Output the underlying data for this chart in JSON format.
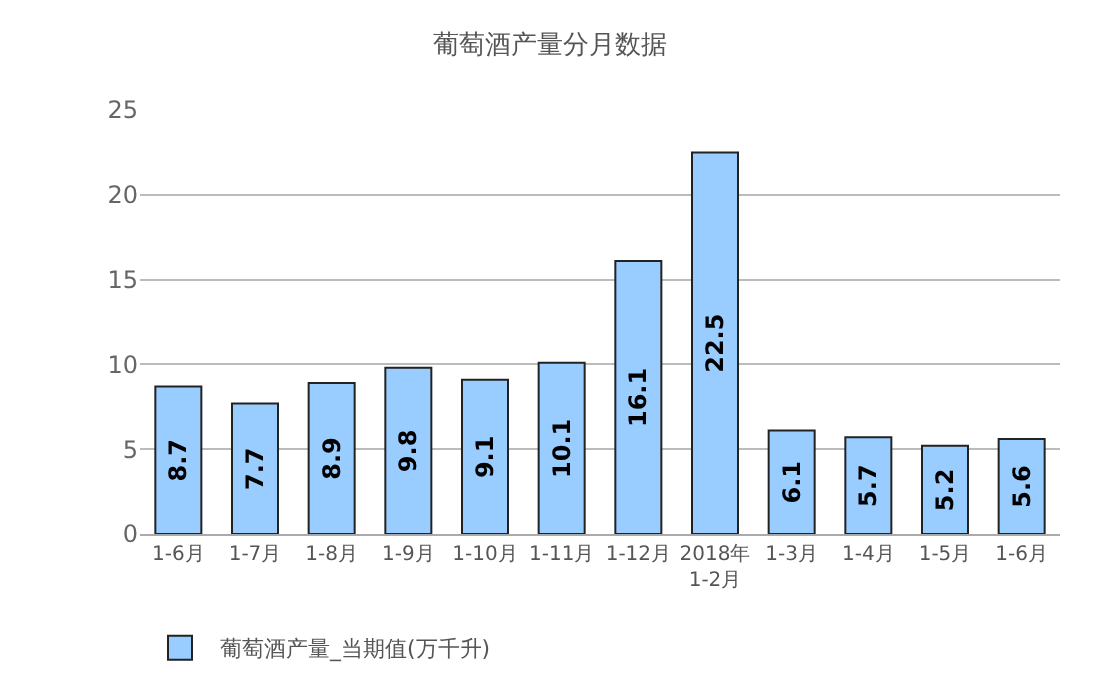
{
  "chart_data": {
    "type": "bar",
    "title": "葡萄酒产量分月数据",
    "categories": [
      "1-6月",
      "1-7月",
      "1-8月",
      "1-9月",
      "1-10月",
      "1-11月",
      "1-12月",
      "2018年\n1-2月",
      "1-3月",
      "1-4月",
      "1-5月",
      "1-6月"
    ],
    "series": [
      {
        "name": "葡萄酒产量_当期值(万千升)",
        "color": "#99ccff",
        "values": [
          8.7,
          7.7,
          8.9,
          9.8,
          9.1,
          10.1,
          16.1,
          22.5,
          6.1,
          5.7,
          5.2,
          5.6
        ]
      }
    ],
    "ylim": [
      0,
      25
    ],
    "yticks": [
      0,
      5,
      10,
      15,
      20,
      25
    ],
    "grid": "y",
    "legend": "bottom left",
    "data_labels": true
  }
}
